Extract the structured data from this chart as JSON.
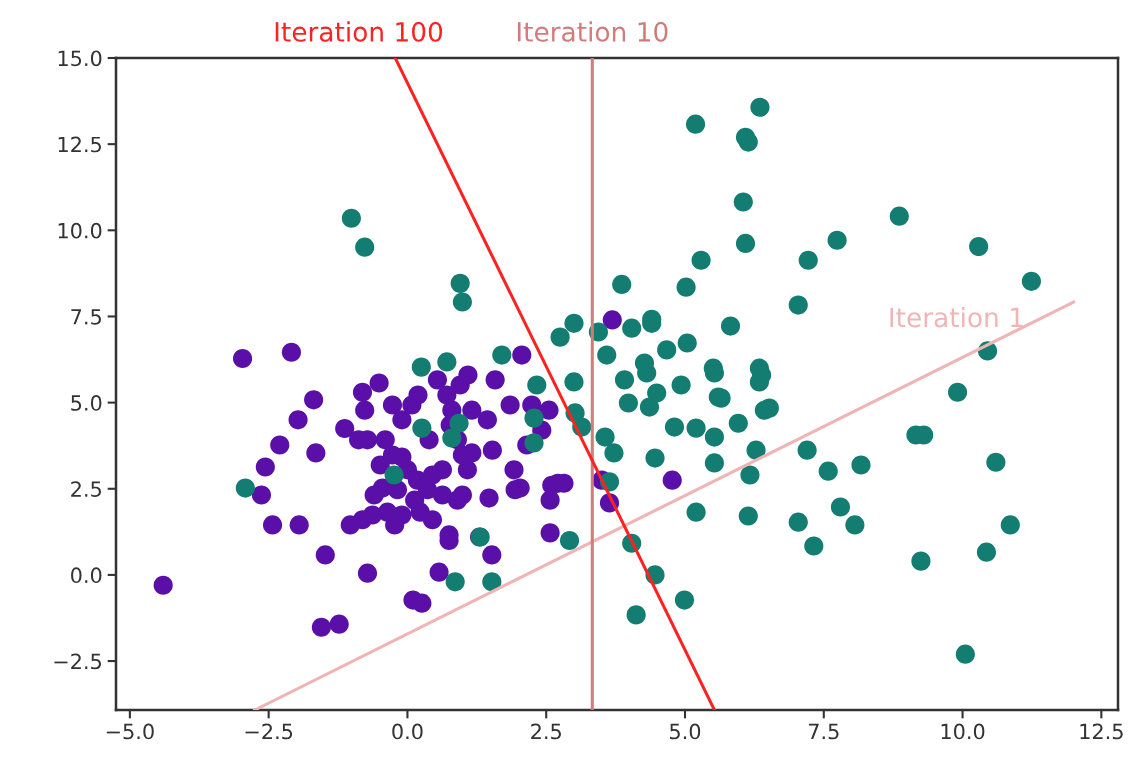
{
  "chart_data": {
    "type": "scatter",
    "xlim": [
      -5.25,
      12.8
    ],
    "ylim": [
      -3.92,
      15
    ],
    "xticks": [
      {
        "value": -5,
        "label": "−5.0"
      },
      {
        "value": -2.5,
        "label": "−2.5"
      },
      {
        "value": 0,
        "label": "0.0"
      },
      {
        "value": 2.5,
        "label": "2.5"
      },
      {
        "value": 5,
        "label": "5.0"
      },
      {
        "value": 7.5,
        "label": "7.5"
      },
      {
        "value": 10,
        "label": "10.0"
      },
      {
        "value": 12.5,
        "label": "12.5"
      }
    ],
    "yticks": [
      {
        "value": -2.5,
        "label": "−2.5"
      },
      {
        "value": 0,
        "label": "0.0"
      },
      {
        "value": 2.5,
        "label": "2.5"
      },
      {
        "value": 5,
        "label": "5.0"
      },
      {
        "value": 7.5,
        "label": "7.5"
      },
      {
        "value": 10,
        "label": "10.0"
      },
      {
        "value": 12.5,
        "label": "12.5"
      },
      {
        "value": 15,
        "label": "15.0"
      }
    ],
    "grid": false,
    "series": [
      {
        "marker": "circle",
        "color": "#5a0fa8",
        "x": [
          -4.4,
          -2.97,
          -2.09,
          -2.56,
          -2.63,
          -2.43,
          -1.95,
          -2.3,
          -1.97,
          -1.69,
          -1.65,
          -1.48,
          -1.55,
          -1.23,
          -1.03,
          -0.72,
          0.1,
          0.26,
          0.57,
          0.75,
          1.3,
          -1.13,
          -0.81,
          -0.51,
          -0.27,
          -0.77,
          -0.4,
          -0.1,
          0.08,
          0.19,
          -0.72,
          -0.88,
          -0.49,
          -0.27,
          -0.1,
          -0.45,
          -0.18,
          0,
          0.18,
          0.36,
          0.45,
          0.63,
          0.13,
          0.23,
          -0.1,
          -0.36,
          -0.63,
          -0.6,
          0.45,
          0.63,
          0.9,
          0.99,
          1.08,
          0.99,
          0.9,
          0.77,
          0.8,
          0.71,
          0.95,
          1.09,
          1.16,
          1.58,
          1.44,
          1.53,
          1.47,
          1.92,
          1.94,
          2.03,
          1.85,
          2.06,
          2.15,
          2.24,
          2.42,
          2.55,
          2.6,
          2.57,
          2.57,
          2.71,
          2.82,
          0.54,
          -0.23,
          -0.81,
          3.69,
          3.5,
          3.64,
          4.77,
          1.16,
          0.39,
          1.52,
          0.75
        ],
        "values": [
          -0.3,
          6.28,
          6.46,
          3.13,
          2.32,
          1.45,
          1.45,
          3.77,
          4.5,
          5.08,
          3.54,
          0.58,
          -1.52,
          -1.43,
          1.45,
          0.05,
          -0.73,
          -0.82,
          0.08,
          1.16,
          1.1,
          4.25,
          5.3,
          5.57,
          4.93,
          4.78,
          3.92,
          4.5,
          4.93,
          5.22,
          3.92,
          3.92,
          3.19,
          3.48,
          3.42,
          2.52,
          2.47,
          3.05,
          2.75,
          2.47,
          2.9,
          3.05,
          2.17,
          1.82,
          1.74,
          1.82,
          1.74,
          2.32,
          1.6,
          2.32,
          2.17,
          2.32,
          3.05,
          3.48,
          3.92,
          4.35,
          4.78,
          5.22,
          5.51,
          5.8,
          4.78,
          5.66,
          4.5,
          3.62,
          2.23,
          3.05,
          2.47,
          2.52,
          4.93,
          6.38,
          3.77,
          4.93,
          4.2,
          4.78,
          2.6,
          2.17,
          1.22,
          2.66,
          2.66,
          5.66,
          1.45,
          1.6,
          7.4,
          2.75,
          2.09,
          2.75,
          3.54,
          3.92,
          0.58,
          1.0
        ]
      },
      {
        "marker": "circle",
        "color": "#137d72",
        "x": [
          -2.92,
          -1.01,
          -0.77,
          0.95,
          0.99,
          0.25,
          0.71,
          0.26,
          -0.24,
          1.7,
          0.93,
          0.8,
          1.31,
          0.86,
          1.52,
          2.33,
          2.28,
          2.28,
          3.0,
          3.0,
          2.75,
          3.44,
          4.04,
          4.4,
          3.59,
          3.91,
          4.27,
          4.31,
          3.98,
          4.36,
          4.49,
          4.67,
          5.04,
          4.93,
          5.53,
          5.6,
          4.81,
          5.2,
          5.53,
          4.46,
          5.53,
          3.02,
          3.14,
          3.56,
          3.72,
          3.64,
          5.2,
          4.04,
          2.92,
          4.46,
          4.99,
          4.12,
          6.35,
          5.19,
          6.09,
          6.14,
          6.05,
          6.09,
          5.29,
          7.22,
          7.74,
          8.86,
          10.29,
          11.24,
          3.86,
          5.02,
          7.04,
          4.4,
          5.82,
          10.45,
          5.51,
          6.34,
          5.65,
          6.38,
          6.34,
          6.52,
          6.43,
          5.96,
          6.28,
          6.17,
          7.2,
          7.58,
          8.17,
          9.16,
          9.3,
          9.91,
          10.6,
          6.14,
          7.04,
          7.32,
          7.8,
          8.06,
          9.25,
          10.43,
          10.86,
          10.05
        ],
        "values": [
          2.52,
          10.35,
          9.51,
          8.46,
          7.92,
          6.03,
          6.18,
          4.26,
          2.9,
          6.38,
          4.4,
          3.97,
          1.1,
          -0.2,
          -0.2,
          5.51,
          4.55,
          3.83,
          5.6,
          7.3,
          6.9,
          7.05,
          7.16,
          7.3,
          6.38,
          5.66,
          6.15,
          5.86,
          4.99,
          4.87,
          5.28,
          6.53,
          6.73,
          5.51,
          5.86,
          5.16,
          4.29,
          4.26,
          4.0,
          3.39,
          3.25,
          4.7,
          4.29,
          4.0,
          3.54,
          2.7,
          1.82,
          0.92,
          1.0,
          0.0,
          -0.73,
          -1.16,
          13.57,
          13.08,
          12.7,
          12.56,
          10.82,
          9.62,
          9.13,
          9.13,
          9.71,
          10.41,
          9.53,
          8.52,
          8.43,
          8.35,
          7.83,
          7.42,
          7.22,
          6.5,
          6.0,
          6.0,
          5.13,
          5.8,
          5.6,
          4.84,
          4.78,
          4.4,
          3.62,
          2.9,
          3.62,
          3.01,
          3.19,
          4.06,
          4.06,
          5.3,
          3.27,
          1.71,
          1.53,
          0.84,
          1.97,
          1.45,
          0.4,
          0.66,
          1.45,
          -2.3
        ]
      },
      {
        "type": "line",
        "name": "Iteration 1",
        "color": "#efb5b5",
        "x": [
          -2.75,
          12
        ],
        "values": [
          -3.92,
          7.92
        ]
      },
      {
        "type": "line",
        "name": "Iteration 10",
        "color": "#d27b7b",
        "x": [
          3.33,
          3.33
        ],
        "values": [
          -3.92,
          15
        ]
      },
      {
        "type": "line",
        "name": "Iteration 100",
        "color": "#fb2222",
        "x": [
          -0.22,
          5.53
        ],
        "values": [
          15,
          -3.92
        ]
      }
    ]
  }
}
